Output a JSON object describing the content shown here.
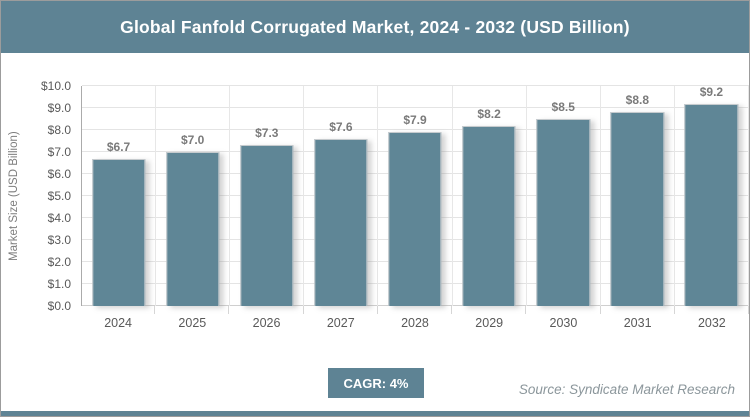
{
  "header": {
    "title": "Global Fanfold Corrugated Market, 2024 - 2032 (USD Billion)"
  },
  "chart_data": {
    "type": "bar",
    "title": "Global Fanfold Corrugated Market, 2024 - 2032 (USD Billion)",
    "categories": [
      "2024",
      "2025",
      "2026",
      "2027",
      "2028",
      "2029",
      "2030",
      "2031",
      "2032"
    ],
    "values": [
      6.7,
      7.0,
      7.3,
      7.6,
      7.9,
      8.2,
      8.5,
      8.8,
      9.2
    ],
    "value_labels": [
      "$6.7",
      "$7.0",
      "$7.3",
      "$7.6",
      "$7.9",
      "$8.2",
      "$8.5",
      "$8.8",
      "$9.2"
    ],
    "xlabel": "",
    "ylabel": "Market Size (USD Billion)",
    "ylim": [
      0,
      10
    ],
    "y_tick_labels": [
      "$0.0",
      "$1.0",
      "$2.0",
      "$3.0",
      "$4.0",
      "$5.0",
      "$6.0",
      "$7.0",
      "$8.0",
      "$9.0",
      "$10.0"
    ],
    "grid": true,
    "legend": "none",
    "bar_color": "#5F8696"
  },
  "footer": {
    "cagr_label": "CAGR: 4%",
    "source": "Source: Syndicate Market Research"
  },
  "colors": {
    "accent": "#5E8394",
    "bar": "#5F8696",
    "gridline": "#E4E4E4",
    "axis_line": "#ABABAB",
    "tick_text": "#595959",
    "data_label_text": "#7A7A7A",
    "source_text": "#8B969B"
  }
}
